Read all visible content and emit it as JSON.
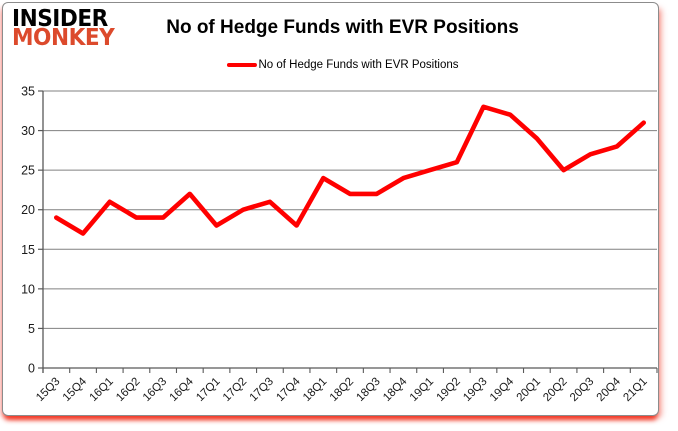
{
  "brand": {
    "line1": "INSIDER",
    "line2": "MONKEY",
    "line2_color": "#dc4a2c"
  },
  "header": {
    "title": "No of Hedge Funds with EVR Positions"
  },
  "legend": {
    "label": "No of Hedge Funds with EVR Positions",
    "swatch_color": "#ff0000"
  },
  "chart_data": {
    "type": "line",
    "title": "No of Hedge Funds with EVR Positions",
    "categories": [
      "15Q3",
      "15Q4",
      "16Q1",
      "16Q2",
      "16Q3",
      "16Q4",
      "17Q1",
      "17Q2",
      "17Q3",
      "17Q4",
      "18Q1",
      "18Q2",
      "18Q3",
      "18Q4",
      "19Q1",
      "19Q2",
      "19Q3",
      "19Q4",
      "20Q1",
      "20Q2",
      "20Q3",
      "20Q4",
      "21Q1"
    ],
    "series": [
      {
        "name": "No of Hedge Funds with EVR Positions",
        "color": "#ff0000",
        "values": [
          19,
          17,
          21,
          19,
          19,
          22,
          18,
          20,
          21,
          18,
          24,
          22,
          22,
          24,
          25,
          26,
          33,
          32,
          29,
          25,
          27,
          28,
          31
        ]
      }
    ],
    "xlabel": "",
    "ylabel": "",
    "ylim": [
      0,
      35
    ],
    "yticks": [
      0,
      5,
      10,
      15,
      20,
      25,
      30,
      35
    ],
    "grid": true,
    "legend_position": "top",
    "colors": {
      "gridline": "#808080",
      "axis": "#595959",
      "tick_label": "#1a1a1a"
    }
  }
}
